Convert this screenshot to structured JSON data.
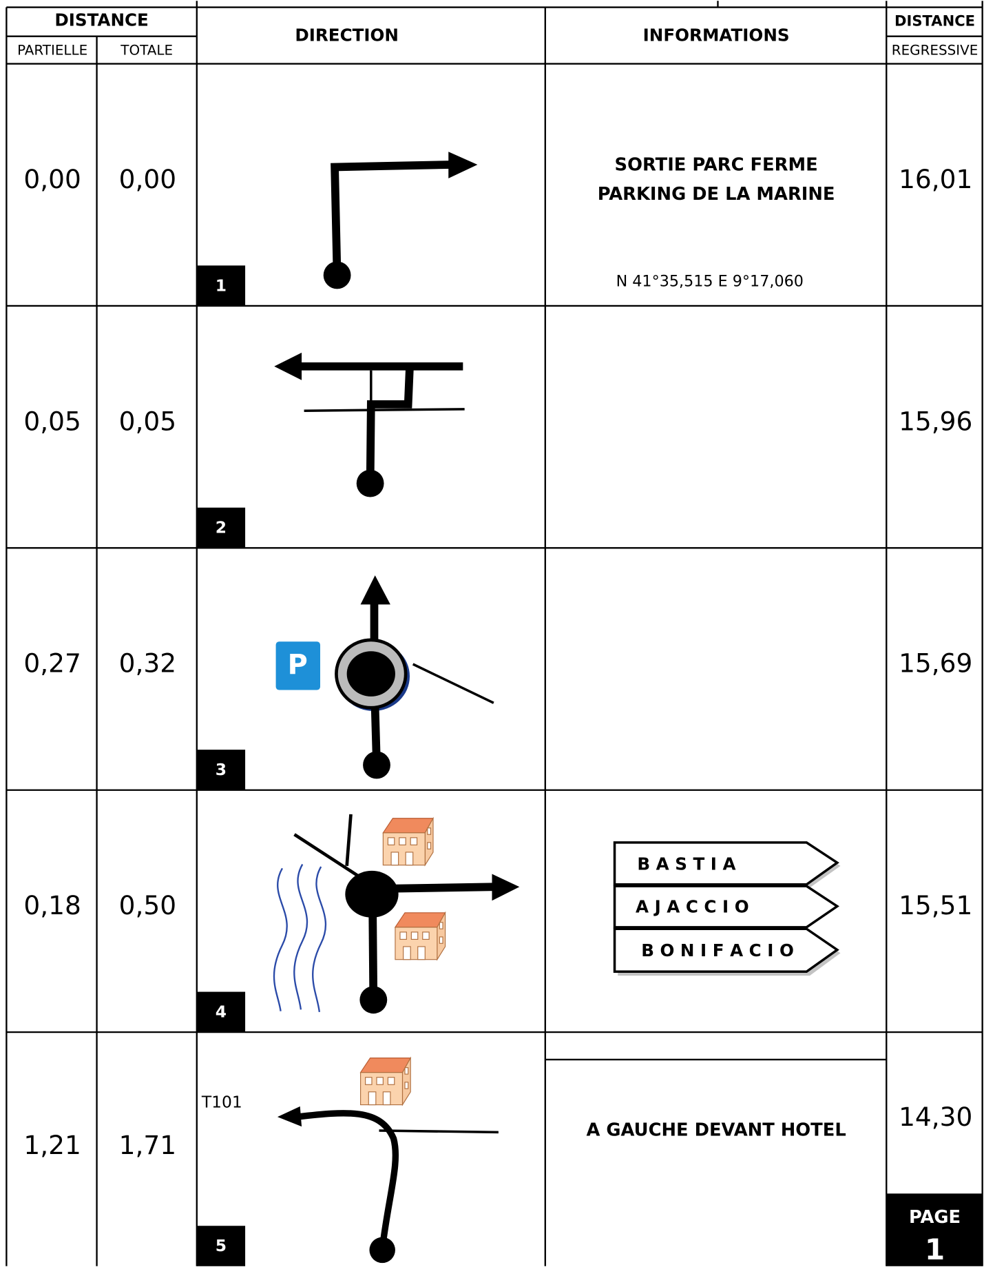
{
  "header": {
    "distance": "DISTANCE",
    "partielle": "PARTIELLE",
    "totale": "TOTALE",
    "direction": "DIRECTION",
    "informations": "INFORMATIONS",
    "distance_right": "DISTANCE",
    "regressive": "REGRESSIVE"
  },
  "rows": [
    {
      "number": "1",
      "partielle": "0,00",
      "totale": "0,00",
      "regressive": "16,01",
      "info": [
        "SORTIE PARC FERME",
        "PARKING DE LA MARINE"
      ],
      "coords": "N 41°35,515  E 9°17,060"
    },
    {
      "number": "2",
      "partielle": "0,05",
      "totale": "0,05",
      "regressive": "15,96"
    },
    {
      "number": "3",
      "partielle": "0,27",
      "totale": "0,32",
      "regressive": "15,69",
      "parking_sign": "P"
    },
    {
      "number": "4",
      "partielle": "0,18",
      "totale": "0,50",
      "regressive": "15,51",
      "signs": [
        "B A S T I A",
        "A J A C C I O",
        "B O N I F A C I O"
      ]
    },
    {
      "number": "5",
      "partielle": "1,21",
      "totale": "1,71",
      "regressive": "14,30",
      "info": [
        "A GAUCHE DEVANT HOTEL"
      ],
      "road": "T101"
    }
  ],
  "page": {
    "label": "PAGE",
    "number": "1"
  }
}
